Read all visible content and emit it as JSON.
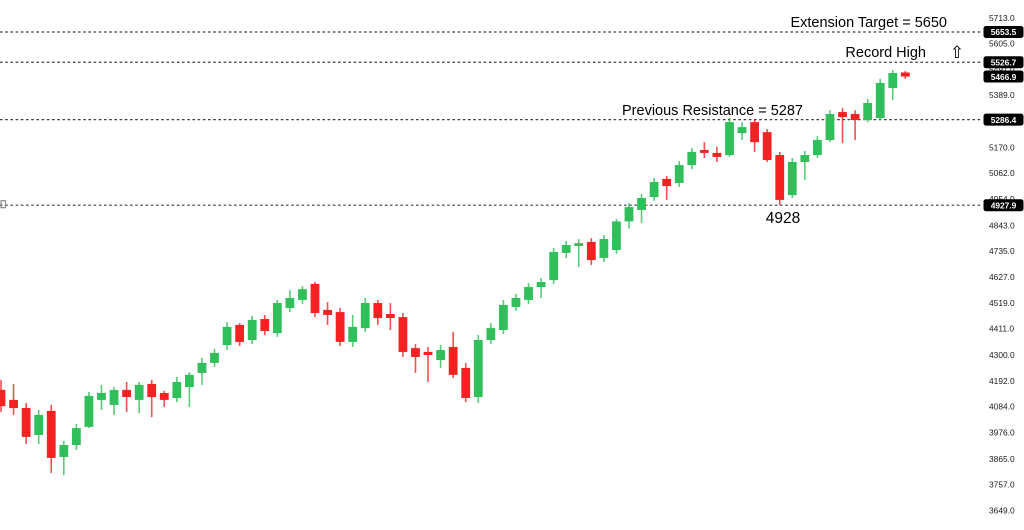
{
  "annotations": {
    "extension_target": "Extension Target = 5650",
    "record_high": "Record High",
    "up_arrow_icon": "⇧",
    "previous_resistance": "Previous Resistance = 5287",
    "swing_low": "4928"
  },
  "chart_data": {
    "type": "candlestick",
    "title": "",
    "xlabel": "",
    "ylabel": "",
    "grid": false,
    "legend": "none",
    "colors": {
      "up": "#30bf5b",
      "down": "#f42222",
      "level_line": "#3c3c3c",
      "tag_bg": "#000000",
      "tag_text": "#ffffff",
      "axis_text": "#1a1a1a"
    },
    "y_axis": {
      "range": [
        3649.0,
        5713.0
      ],
      "tick_labels": [
        "5713.0",
        "5605.0",
        "5497.0",
        "5389.0",
        "5170.0",
        "5062.0",
        "4954.0",
        "4843.0",
        "4735.0",
        "4627.0",
        "4519.0",
        "4411.0",
        "4300.0",
        "4192.0",
        "4084.0",
        "3976.0",
        "3865.0",
        "3757.0",
        "3649.0"
      ],
      "tick_values": [
        5713.0,
        5605.0,
        5497.0,
        5389.0,
        5170.0,
        5062.0,
        4954.0,
        4843.0,
        4735.0,
        4627.0,
        4519.0,
        4411.0,
        4300.0,
        4192.0,
        4084.0,
        3976.0,
        3865.0,
        3757.0,
        3649.0
      ]
    },
    "level_lines": [
      {
        "name": "extension-target-line",
        "price": 5653.5,
        "style": "dotted"
      },
      {
        "name": "record-high-line",
        "price": 5526.7,
        "style": "dotted"
      },
      {
        "name": "previous-resistance-line",
        "price": 5286.4,
        "style": "dotted"
      },
      {
        "name": "swing-low-line",
        "price": 4927.9,
        "style": "dotted"
      }
    ],
    "price_tags": [
      {
        "label": "5653.5",
        "value": 5653.5
      },
      {
        "label": "5526.7",
        "value": 5526.7
      },
      {
        "label": "5466.9",
        "value": 5466.9
      },
      {
        "label": "5286.4",
        "value": 5286.4
      },
      {
        "label": "4927.9",
        "value": 4927.9
      }
    ],
    "candles_format": [
      "open",
      "high",
      "low",
      "close"
    ],
    "candles": [
      [
        4154,
        4196,
        4061,
        4086
      ],
      [
        4112,
        4179,
        4049,
        4078
      ],
      [
        4078,
        4099,
        3927,
        3957
      ],
      [
        3965,
        4070,
        3927,
        4049
      ],
      [
        4066,
        4091,
        3806,
        3869
      ],
      [
        3873,
        3940,
        3797,
        3923
      ],
      [
        3923,
        4011,
        3902,
        3994
      ],
      [
        3999,
        4145,
        3994,
        4129
      ],
      [
        4112,
        4175,
        4070,
        4141
      ],
      [
        4091,
        4166,
        4049,
        4154
      ],
      [
        4154,
        4187,
        4061,
        4124
      ],
      [
        4112,
        4187,
        4057,
        4175
      ],
      [
        4179,
        4196,
        4040,
        4124
      ],
      [
        4141,
        4150,
        4082,
        4112
      ],
      [
        4120,
        4208,
        4103,
        4187
      ],
      [
        4166,
        4229,
        4082,
        4217
      ],
      [
        4225,
        4288,
        4175,
        4267
      ],
      [
        4267,
        4325,
        4250,
        4309
      ],
      [
        4342,
        4438,
        4321,
        4418
      ],
      [
        4426,
        4434,
        4338,
        4355
      ],
      [
        4363,
        4464,
        4346,
        4447
      ],
      [
        4451,
        4468,
        4384,
        4401
      ],
      [
        4392,
        4531,
        4376,
        4518
      ],
      [
        4497,
        4572,
        4480,
        4539
      ],
      [
        4531,
        4589,
        4514,
        4576
      ],
      [
        4598,
        4606,
        4459,
        4476
      ],
      [
        4489,
        4522,
        4426,
        4468
      ],
      [
        4480,
        4497,
        4338,
        4355
      ],
      [
        4355,
        4468,
        4334,
        4418
      ],
      [
        4413,
        4539,
        4397,
        4518
      ],
      [
        4518,
        4531,
        4426,
        4455
      ],
      [
        4472,
        4518,
        4405,
        4455
      ],
      [
        4459,
        4476,
        4292,
        4313
      ],
      [
        4329,
        4346,
        4225,
        4292
      ],
      [
        4313,
        4334,
        4187,
        4300
      ],
      [
        4279,
        4342,
        4246,
        4321
      ],
      [
        4334,
        4397,
        4204,
        4217
      ],
      [
        4246,
        4267,
        4103,
        4120
      ],
      [
        4124,
        4384,
        4099,
        4363
      ],
      [
        4363,
        4434,
        4346,
        4413
      ],
      [
        4405,
        4531,
        4388,
        4510
      ],
      [
        4501,
        4556,
        4485,
        4539
      ],
      [
        4531,
        4602,
        4514,
        4585
      ],
      [
        4585,
        4623,
        4539,
        4606
      ],
      [
        4614,
        4749,
        4598,
        4732
      ],
      [
        4728,
        4778,
        4707,
        4761
      ],
      [
        4757,
        4786,
        4669,
        4769
      ],
      [
        4774,
        4790,
        4677,
        4698
      ],
      [
        4707,
        4803,
        4690,
        4786
      ],
      [
        4740,
        4870,
        4724,
        4860
      ],
      [
        4860,
        4937,
        4830,
        4920
      ],
      [
        4908,
        4975,
        4853,
        4958
      ],
      [
        4962,
        5042,
        4946,
        5025
      ],
      [
        5038,
        5050,
        4950,
        5008
      ],
      [
        5021,
        5113,
        5004,
        5096
      ],
      [
        5096,
        5167,
        5079,
        5151
      ],
      [
        5159,
        5192,
        5126,
        5147
      ],
      [
        5147,
        5172,
        5109,
        5130
      ],
      [
        5138,
        5293,
        5130,
        5276
      ],
      [
        5230,
        5276,
        5201,
        5255
      ],
      [
        5276,
        5289,
        5151,
        5192
      ],
      [
        5234,
        5247,
        5109,
        5117
      ],
      [
        5138,
        5151,
        4928,
        4950
      ],
      [
        4970,
        5126,
        4958,
        5109
      ],
      [
        5109,
        5155,
        5033,
        5138
      ],
      [
        5138,
        5218,
        5126,
        5201
      ],
      [
        5201,
        5326,
        5192,
        5310
      ],
      [
        5318,
        5335,
        5188,
        5297
      ],
      [
        5310,
        5326,
        5201,
        5285
      ],
      [
        5285,
        5373,
        5276,
        5356
      ],
      [
        5293,
        5457,
        5285,
        5440
      ],
      [
        5419,
        5494,
        5369,
        5482
      ],
      [
        5484,
        5490,
        5457,
        5466.9
      ]
    ],
    "last_price": 5466.9
  }
}
